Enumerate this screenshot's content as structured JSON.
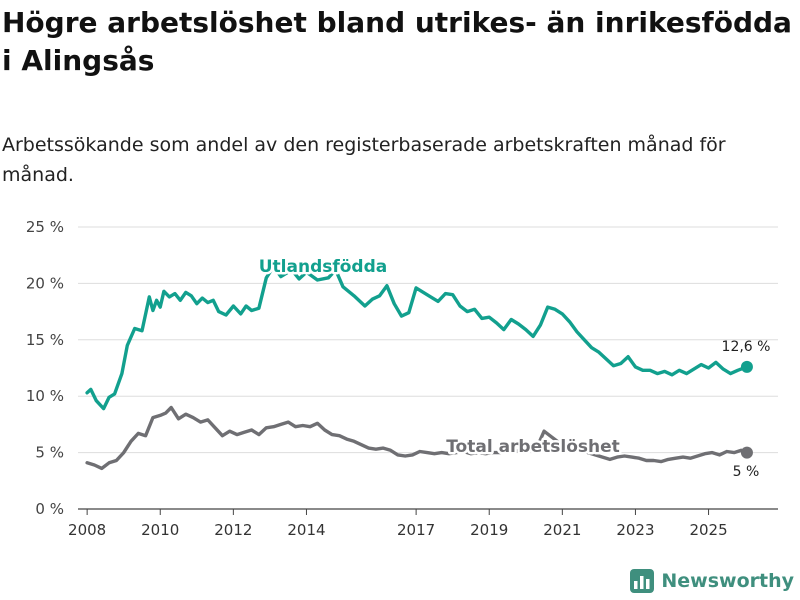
{
  "title": "Högre arbetslöshet bland utrikes- än inrikesfödda i Alingsås",
  "subtitle": "Arbetssökande som andel av den registerbaserade arbetskraften månad för månad.",
  "brand": {
    "name": "Newsworthy",
    "icon": "bar-chart-logo-icon"
  },
  "colors": {
    "foreign": "#12a08e",
    "total": "#6f6f73",
    "grid": "#dddddd",
    "axis": "#555555"
  },
  "chart_data": {
    "type": "line",
    "title": "",
    "xlabel": "",
    "ylabel": "",
    "ylim": [
      0,
      25
    ],
    "xlim": [
      2007.75,
      2026.9
    ],
    "yticks": [
      0,
      5,
      10,
      15,
      20,
      25
    ],
    "ytick_labels": [
      "0 %",
      "5 %",
      "10 %",
      "15 %",
      "20 %",
      "25 %"
    ],
    "xticks": [
      2008,
      2010,
      2012,
      2014,
      2017,
      2019,
      2021,
      2023,
      2025
    ],
    "xtick_labels": [
      "2008",
      "2010",
      "2012",
      "2014",
      "2017",
      "2019",
      "2021",
      "2023",
      "2025"
    ],
    "grid": true,
    "series": [
      {
        "name": "Utlandsfödda",
        "label": "Utlandsfödda",
        "end_label": "12,6 %",
        "x": [
          2008.0,
          2008.1,
          2008.25,
          2008.45,
          2008.6,
          2008.75,
          2008.95,
          2009.1,
          2009.3,
          2009.5,
          2009.7,
          2009.8,
          2009.9,
          2010.0,
          2010.1,
          2010.25,
          2010.4,
          2010.55,
          2010.7,
          2010.85,
          2011.0,
          2011.15,
          2011.3,
          2011.45,
          2011.6,
          2011.8,
          2012.0,
          2012.2,
          2012.35,
          2012.5,
          2012.7,
          2012.9,
          2013.1,
          2013.3,
          2013.6,
          2013.8,
          2014.0,
          2014.3,
          2014.6,
          2014.8,
          2015.0,
          2015.3,
          2015.6,
          2015.8,
          2016.0,
          2016.2,
          2016.4,
          2016.6,
          2016.8,
          2017.0,
          2017.2,
          2017.4,
          2017.6,
          2017.8,
          2018.0,
          2018.2,
          2018.4,
          2018.6,
          2018.8,
          2019.0,
          2019.2,
          2019.4,
          2019.6,
          2019.8,
          2020.0,
          2020.2,
          2020.4,
          2020.6,
          2020.8,
          2021.0,
          2021.2,
          2021.4,
          2021.6,
          2021.8,
          2022.0,
          2022.2,
          2022.4,
          2022.6,
          2022.8,
          2023.0,
          2023.2,
          2023.4,
          2023.6,
          2023.8,
          2024.0,
          2024.2,
          2024.4,
          2024.6,
          2024.8,
          2025.0,
          2025.2,
          2025.4,
          2025.6,
          2025.8,
          2026.05
        ],
        "values": [
          10.3,
          10.6,
          9.6,
          8.9,
          9.9,
          10.2,
          12.0,
          14.5,
          16.0,
          15.8,
          18.8,
          17.6,
          18.5,
          17.9,
          19.3,
          18.8,
          19.1,
          18.5,
          19.2,
          18.9,
          18.2,
          18.7,
          18.3,
          18.5,
          17.5,
          17.2,
          18.0,
          17.3,
          18.0,
          17.6,
          17.8,
          20.5,
          21.5,
          20.6,
          21.2,
          20.4,
          21.0,
          20.3,
          20.5,
          21.2,
          19.7,
          18.9,
          18.0,
          18.6,
          18.9,
          19.8,
          18.2,
          17.1,
          17.4,
          19.6,
          19.2,
          18.8,
          18.4,
          19.1,
          19.0,
          18.0,
          17.5,
          17.7,
          16.9,
          17.0,
          16.5,
          15.9,
          16.8,
          16.4,
          15.9,
          15.3,
          16.3,
          17.9,
          17.7,
          17.3,
          16.6,
          15.7,
          15.0,
          14.3,
          13.9,
          13.3,
          12.7,
          12.9,
          13.5,
          12.6,
          12.3,
          12.3,
          12.0,
          12.2,
          11.9,
          12.3,
          12.0,
          12.4,
          12.8,
          12.5,
          13.0,
          12.4,
          12.0,
          12.3,
          12.6
        ]
      },
      {
        "name": "Total arbetslöshet",
        "label": "Total arbetslöshet",
        "end_label": "5 %",
        "x": [
          2008.0,
          2008.2,
          2008.4,
          2008.6,
          2008.8,
          2009.0,
          2009.2,
          2009.4,
          2009.6,
          2009.8,
          2010.0,
          2010.15,
          2010.3,
          2010.5,
          2010.7,
          2010.9,
          2011.1,
          2011.3,
          2011.5,
          2011.7,
          2011.9,
          2012.1,
          2012.3,
          2012.5,
          2012.7,
          2012.9,
          2013.1,
          2013.3,
          2013.5,
          2013.7,
          2013.9,
          2014.1,
          2014.3,
          2014.5,
          2014.7,
          2014.9,
          2015.1,
          2015.3,
          2015.5,
          2015.7,
          2015.9,
          2016.1,
          2016.3,
          2016.5,
          2016.7,
          2016.9,
          2017.1,
          2017.3,
          2017.5,
          2017.7,
          2017.9,
          2018.1,
          2018.3,
          2018.5,
          2018.7,
          2018.9,
          2019.1,
          2019.3,
          2019.5,
          2019.7,
          2019.9,
          2020.1,
          2020.3,
          2020.5,
          2020.7,
          2020.9,
          2021.1,
          2021.3,
          2021.5,
          2021.7,
          2021.9,
          2022.1,
          2022.3,
          2022.5,
          2022.7,
          2022.9,
          2023.1,
          2023.3,
          2023.5,
          2023.7,
          2023.9,
          2024.1,
          2024.3,
          2024.5,
          2024.7,
          2024.9,
          2025.1,
          2025.3,
          2025.5,
          2025.7,
          2025.9,
          2026.05
        ],
        "values": [
          4.1,
          3.9,
          3.6,
          4.1,
          4.3,
          5.0,
          6.0,
          6.7,
          6.5,
          8.1,
          8.3,
          8.5,
          9.0,
          8.0,
          8.4,
          8.1,
          7.7,
          7.9,
          7.2,
          6.5,
          6.9,
          6.6,
          6.8,
          7.0,
          6.6,
          7.2,
          7.3,
          7.5,
          7.7,
          7.3,
          7.4,
          7.3,
          7.6,
          7.0,
          6.6,
          6.5,
          6.2,
          6.0,
          5.7,
          5.4,
          5.3,
          5.4,
          5.2,
          4.8,
          4.7,
          4.8,
          5.1,
          5.0,
          4.9,
          5.0,
          4.9,
          5.0,
          5.1,
          4.9,
          5.0,
          4.9,
          5.0,
          5.0,
          5.1,
          5.2,
          5.0,
          5.2,
          5.4,
          6.9,
          6.4,
          5.9,
          5.8,
          5.5,
          5.3,
          5.0,
          4.8,
          4.6,
          4.4,
          4.6,
          4.7,
          4.6,
          4.5,
          4.3,
          4.3,
          4.2,
          4.4,
          4.5,
          4.6,
          4.5,
          4.7,
          4.9,
          5.0,
          4.8,
          5.1,
          5.0,
          5.2,
          5.0
        ]
      }
    ]
  }
}
